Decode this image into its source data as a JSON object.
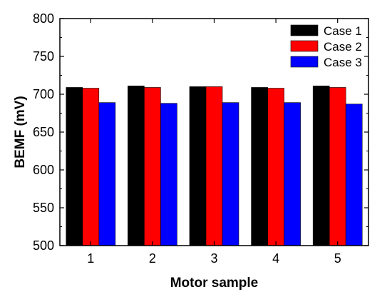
{
  "chart_data": {
    "type": "bar",
    "xlabel": "Motor sample",
    "ylabel": "BEMF (mV)",
    "categories": [
      "1",
      "2",
      "3",
      "4",
      "5"
    ],
    "ylim": [
      500,
      800
    ],
    "yticks": [
      500,
      550,
      600,
      650,
      700,
      750,
      800
    ],
    "grid": false,
    "legend_position": "top-right",
    "series": [
      {
        "name": "Case 1",
        "color": "#000000",
        "values": [
          709,
          711,
          710,
          709,
          711
        ]
      },
      {
        "name": "Case 2",
        "color": "#ff0000",
        "values": [
          708,
          709,
          710,
          708,
          709
        ]
      },
      {
        "name": "Case 3",
        "color": "#0000ff",
        "values": [
          689,
          688,
          689,
          689,
          687
        ]
      }
    ]
  }
}
